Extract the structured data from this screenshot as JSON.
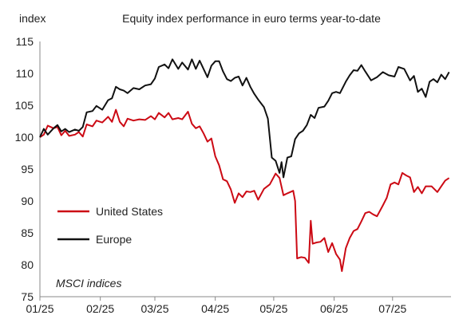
{
  "chart_data": {
    "type": "line",
    "title": "Equity index performance in euro terms year-to-date",
    "ylabel": "index",
    "xlabel": "",
    "ylim": [
      75,
      115
    ],
    "yticks": [
      75,
      80,
      85,
      90,
      95,
      100,
      105,
      110,
      115
    ],
    "xlim": [
      "2025-01-01",
      "2025-07-31"
    ],
    "xticks": [
      {
        "label": "01/25",
        "date": "2025-01-01"
      },
      {
        "label": "02/25",
        "date": "2025-02-01"
      },
      {
        "label": "03/25",
        "date": "2025-03-01"
      },
      {
        "label": "04/25",
        "date": "2025-04-01"
      },
      {
        "label": "05/25",
        "date": "2025-05-01"
      },
      {
        "label": "06/25",
        "date": "2025-06-01"
      },
      {
        "label": "07/25",
        "date": "2025-07-01"
      }
    ],
    "grid": false,
    "legend": "lower-left",
    "note": "MSCI indices",
    "series": [
      {
        "name": "United States",
        "color": "#cc0a14",
        "points": [
          [
            "2025-01-01",
            100.0
          ],
          [
            "2025-01-03",
            100.4
          ],
          [
            "2025-01-05",
            101.8
          ],
          [
            "2025-01-08",
            101.4
          ],
          [
            "2025-01-10",
            101.6
          ],
          [
            "2025-01-12",
            100.3
          ],
          [
            "2025-01-14",
            101.0
          ],
          [
            "2025-01-16",
            100.2
          ],
          [
            "2025-01-19",
            100.4
          ],
          [
            "2025-01-21",
            100.8
          ],
          [
            "2025-01-23",
            100.1
          ],
          [
            "2025-01-25",
            102.0
          ],
          [
            "2025-01-28",
            101.7
          ],
          [
            "2025-01-30",
            102.6
          ],
          [
            "2025-02-02",
            102.3
          ],
          [
            "2025-02-05",
            103.2
          ],
          [
            "2025-02-07",
            102.4
          ],
          [
            "2025-02-09",
            104.3
          ],
          [
            "2025-02-11",
            102.4
          ],
          [
            "2025-02-13",
            101.7
          ],
          [
            "2025-02-15",
            102.9
          ],
          [
            "2025-02-18",
            102.6
          ],
          [
            "2025-02-21",
            102.8
          ],
          [
            "2025-02-24",
            102.7
          ],
          [
            "2025-02-27",
            103.3
          ],
          [
            "2025-03-01",
            102.8
          ],
          [
            "2025-03-03",
            103.8
          ],
          [
            "2025-03-06",
            103.1
          ],
          [
            "2025-03-08",
            103.8
          ],
          [
            "2025-03-10",
            102.8
          ],
          [
            "2025-03-13",
            103.0
          ],
          [
            "2025-03-15",
            102.8
          ],
          [
            "2025-03-18",
            104.0
          ],
          [
            "2025-03-20",
            102.1
          ],
          [
            "2025-03-22",
            101.4
          ],
          [
            "2025-03-24",
            101.7
          ],
          [
            "2025-03-26",
            100.6
          ],
          [
            "2025-03-28",
            99.3
          ],
          [
            "2025-03-30",
            99.8
          ],
          [
            "2025-04-01",
            97.0
          ],
          [
            "2025-04-03",
            95.6
          ],
          [
            "2025-04-05",
            93.4
          ],
          [
            "2025-04-07",
            93.1
          ],
          [
            "2025-04-09",
            91.8
          ],
          [
            "2025-04-11",
            89.7
          ],
          [
            "2025-04-13",
            91.2
          ],
          [
            "2025-04-15",
            90.6
          ],
          [
            "2025-04-17",
            91.5
          ],
          [
            "2025-04-19",
            91.4
          ],
          [
            "2025-04-21",
            91.6
          ],
          [
            "2025-04-23",
            90.2
          ],
          [
            "2025-04-26",
            91.9
          ],
          [
            "2025-04-29",
            92.6
          ],
          [
            "2025-05-02",
            94.3
          ],
          [
            "2025-05-04",
            93.6
          ],
          [
            "2025-05-06",
            90.9
          ],
          [
            "2025-05-08",
            91.2
          ],
          [
            "2025-05-11",
            91.6
          ],
          [
            "2025-05-12",
            90.0
          ],
          [
            "2025-05-13",
            81.0
          ],
          [
            "2025-05-15",
            81.2
          ],
          [
            "2025-05-17",
            81.1
          ],
          [
            "2025-05-19",
            80.3
          ],
          [
            "2025-05-20",
            86.9
          ],
          [
            "2025-05-21",
            83.3
          ],
          [
            "2025-05-23",
            83.5
          ],
          [
            "2025-05-25",
            83.6
          ],
          [
            "2025-05-27",
            84.2
          ],
          [
            "2025-05-29",
            82.0
          ],
          [
            "2025-05-31",
            83.4
          ],
          [
            "2025-06-02",
            81.7
          ],
          [
            "2025-06-04",
            80.8
          ],
          [
            "2025-06-05",
            79.0
          ],
          [
            "2025-06-07",
            82.6
          ],
          [
            "2025-06-09",
            84.2
          ],
          [
            "2025-06-11",
            85.3
          ],
          [
            "2025-06-13",
            85.6
          ],
          [
            "2025-06-15",
            86.8
          ],
          [
            "2025-06-17",
            88.1
          ],
          [
            "2025-06-19",
            88.3
          ],
          [
            "2025-06-21",
            87.9
          ],
          [
            "2025-06-23",
            87.6
          ],
          [
            "2025-06-26",
            89.3
          ],
          [
            "2025-06-28",
            90.5
          ],
          [
            "2025-06-30",
            92.6
          ],
          [
            "2025-07-02",
            92.9
          ],
          [
            "2025-07-04",
            92.6
          ],
          [
            "2025-07-06",
            94.4
          ],
          [
            "2025-07-08",
            94.0
          ],
          [
            "2025-07-10",
            93.7
          ],
          [
            "2025-07-12",
            91.4
          ],
          [
            "2025-07-14",
            92.2
          ],
          [
            "2025-07-16",
            91.2
          ],
          [
            "2025-07-18",
            92.3
          ],
          [
            "2025-07-21",
            92.3
          ],
          [
            "2025-07-24",
            91.4
          ],
          [
            "2025-07-26",
            92.3
          ],
          [
            "2025-07-28",
            93.2
          ],
          [
            "2025-07-30",
            93.6
          ]
        ]
      },
      {
        "name": "Europe",
        "color": "#111111",
        "points": [
          [
            "2025-01-01",
            100.0
          ],
          [
            "2025-01-03",
            101.3
          ],
          [
            "2025-01-05",
            100.4
          ],
          [
            "2025-01-08",
            101.4
          ],
          [
            "2025-01-10",
            101.9
          ],
          [
            "2025-01-12",
            100.9
          ],
          [
            "2025-01-14",
            101.3
          ],
          [
            "2025-01-16",
            100.8
          ],
          [
            "2025-01-19",
            101.2
          ],
          [
            "2025-01-21",
            101.0
          ],
          [
            "2025-01-23",
            101.6
          ],
          [
            "2025-01-25",
            103.9
          ],
          [
            "2025-01-28",
            104.1
          ],
          [
            "2025-01-30",
            104.9
          ],
          [
            "2025-02-02",
            104.3
          ],
          [
            "2025-02-05",
            105.8
          ],
          [
            "2025-02-07",
            106.1
          ],
          [
            "2025-02-09",
            107.9
          ],
          [
            "2025-02-11",
            107.5
          ],
          [
            "2025-02-13",
            107.3
          ],
          [
            "2025-02-15",
            106.9
          ],
          [
            "2025-02-18",
            107.7
          ],
          [
            "2025-02-21",
            107.5
          ],
          [
            "2025-02-24",
            108.1
          ],
          [
            "2025-02-27",
            108.3
          ],
          [
            "2025-03-01",
            109.2
          ],
          [
            "2025-03-03",
            111.0
          ],
          [
            "2025-03-06",
            111.4
          ],
          [
            "2025-03-08",
            110.8
          ],
          [
            "2025-03-10",
            112.2
          ],
          [
            "2025-03-13",
            110.7
          ],
          [
            "2025-03-15",
            111.7
          ],
          [
            "2025-03-18",
            110.6
          ],
          [
            "2025-03-20",
            112.2
          ],
          [
            "2025-03-22",
            110.7
          ],
          [
            "2025-03-24",
            112.0
          ],
          [
            "2025-03-26",
            110.7
          ],
          [
            "2025-03-28",
            109.4
          ],
          [
            "2025-03-30",
            111.2
          ],
          [
            "2025-04-01",
            111.9
          ],
          [
            "2025-04-03",
            111.9
          ],
          [
            "2025-04-05",
            110.3
          ],
          [
            "2025-04-07",
            109.1
          ],
          [
            "2025-04-09",
            108.8
          ],
          [
            "2025-04-11",
            109.3
          ],
          [
            "2025-04-13",
            109.5
          ],
          [
            "2025-04-15",
            108.1
          ],
          [
            "2025-04-17",
            109.3
          ],
          [
            "2025-04-19",
            107.9
          ],
          [
            "2025-04-21",
            106.8
          ],
          [
            "2025-04-23",
            105.9
          ],
          [
            "2025-04-26",
            104.7
          ],
          [
            "2025-04-28",
            102.9
          ],
          [
            "2025-04-30",
            96.8
          ],
          [
            "2025-05-02",
            96.3
          ],
          [
            "2025-05-04",
            94.4
          ],
          [
            "2025-05-05",
            96.1
          ],
          [
            "2025-05-06",
            93.7
          ],
          [
            "2025-05-08",
            96.8
          ],
          [
            "2025-05-10",
            97.0
          ],
          [
            "2025-05-12",
            99.7
          ],
          [
            "2025-05-14",
            100.6
          ],
          [
            "2025-05-16",
            101.0
          ],
          [
            "2025-05-18",
            101.9
          ],
          [
            "2025-05-20",
            103.5
          ],
          [
            "2025-05-22",
            103.0
          ],
          [
            "2025-05-24",
            104.6
          ],
          [
            "2025-05-27",
            104.8
          ],
          [
            "2025-05-29",
            105.7
          ],
          [
            "2025-05-31",
            106.9
          ],
          [
            "2025-06-02",
            107.1
          ],
          [
            "2025-06-04",
            106.9
          ],
          [
            "2025-06-07",
            108.7
          ],
          [
            "2025-06-09",
            109.7
          ],
          [
            "2025-06-11",
            110.5
          ],
          [
            "2025-06-13",
            110.4
          ],
          [
            "2025-06-15",
            111.3
          ],
          [
            "2025-06-17",
            110.3
          ],
          [
            "2025-06-20",
            108.9
          ],
          [
            "2025-06-23",
            109.4
          ],
          [
            "2025-06-26",
            110.2
          ],
          [
            "2025-06-29",
            109.7
          ],
          [
            "2025-07-02",
            109.5
          ],
          [
            "2025-07-04",
            111.0
          ],
          [
            "2025-07-07",
            110.7
          ],
          [
            "2025-07-10",
            108.9
          ],
          [
            "2025-07-12",
            109.6
          ],
          [
            "2025-07-14",
            107.1
          ],
          [
            "2025-07-16",
            107.6
          ],
          [
            "2025-07-18",
            106.3
          ],
          [
            "2025-07-20",
            108.7
          ],
          [
            "2025-07-22",
            109.1
          ],
          [
            "2025-07-24",
            108.6
          ],
          [
            "2025-07-26",
            109.8
          ],
          [
            "2025-07-28",
            109.1
          ],
          [
            "2025-07-30",
            110.2
          ]
        ]
      }
    ]
  }
}
